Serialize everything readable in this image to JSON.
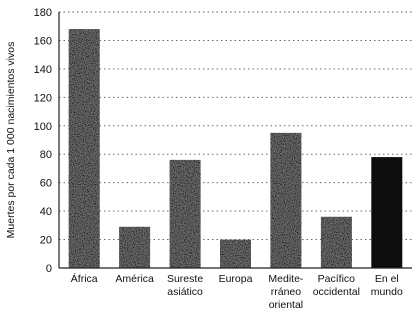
{
  "chart_data": {
    "type": "bar",
    "ylabel": "Muertes por cada 1 000 nacimientos vivos",
    "ylim": [
      0,
      180
    ],
    "yticks": [
      0,
      20,
      40,
      60,
      80,
      100,
      120,
      140,
      160,
      180
    ],
    "grid": "horizontal-dotted",
    "categories": [
      [
        "África"
      ],
      [
        "América"
      ],
      [
        "Sureste",
        "asiático"
      ],
      [
        "Europa"
      ],
      [
        "Medite-",
        "rráneo",
        "oriental"
      ],
      [
        "Pacífico",
        "occidental"
      ],
      [
        "En el",
        "mundo"
      ]
    ],
    "values": [
      168,
      29,
      76,
      20,
      95,
      36,
      78
    ],
    "bar_styles": [
      "textured",
      "textured",
      "textured",
      "textured",
      "textured",
      "textured",
      "solid"
    ],
    "colors": {
      "textured_bar": "#6e6e6e",
      "solid_bar": "#0d0d0d",
      "axis": "#222222",
      "grid": "#555555"
    }
  }
}
